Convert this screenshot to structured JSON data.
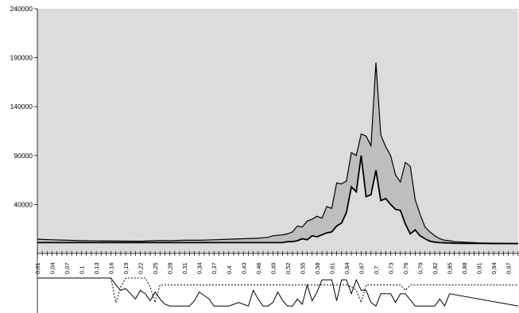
{
  "chart_data": {
    "type": "area",
    "title": "",
    "xlabel": "",
    "ylabel": "",
    "ylim": [
      -10000,
      240000
    ],
    "xlim": [
      0.01,
      0.99
    ],
    "grid": false,
    "legend": "none",
    "colors": {
      "plot_bg": "#dcdcdc",
      "band_fill": "#bebebe",
      "line": "#000000"
    },
    "yticks": [
      "40000",
      "90000",
      "140000",
      "190000",
      "240000"
    ],
    "yticks_values": [
      40000,
      90000,
      140000,
      190000,
      240000
    ],
    "xticks": [
      "0,01",
      "0,04",
      "0,07",
      "0,1",
      "0,13",
      "0,16",
      "0,19",
      "0,22",
      "0,25",
      "0,28",
      "0,31",
      "0,34",
      "0,37",
      "0,4",
      "0,43",
      "0,46",
      "0,49",
      "0,52",
      "0,55",
      "0,58",
      "0,61",
      "0,64",
      "0,67",
      "0,7",
      "0,73",
      "0,76",
      "0,79",
      "0,82",
      "0,85",
      "0,88",
      "0,91",
      "0,94",
      "0,97"
    ],
    "xticks_values": [
      0.01,
      0.04,
      0.07,
      0.1,
      0.13,
      0.16,
      0.19,
      0.22,
      0.25,
      0.28,
      0.31,
      0.34,
      0.37,
      0.4,
      0.43,
      0.46,
      0.49,
      0.52,
      0.55,
      0.58,
      0.61,
      0.64,
      0.67,
      0.7,
      0.73,
      0.76,
      0.79,
      0.82,
      0.85,
      0.88,
      0.91,
      0.94,
      0.97
    ],
    "x": [
      0.01,
      0.04,
      0.07,
      0.1,
      0.13,
      0.16,
      0.19,
      0.22,
      0.25,
      0.26,
      0.28,
      0.31,
      0.34,
      0.37,
      0.4,
      0.43,
      0.46,
      0.48,
      0.49,
      0.51,
      0.52,
      0.53,
      0.54,
      0.55,
      0.56,
      0.57,
      0.58,
      0.59,
      0.6,
      0.61,
      0.62,
      0.63,
      0.64,
      0.65,
      0.66,
      0.67,
      0.68,
      0.69,
      0.7,
      0.71,
      0.72,
      0.73,
      0.74,
      0.75,
      0.76,
      0.77,
      0.78,
      0.79,
      0.8,
      0.81,
      0.82,
      0.83,
      0.84,
      0.85,
      0.86,
      0.88,
      0.91,
      0.94,
      0.97,
      0.99
    ],
    "series": [
      {
        "values": [
          4500,
          4000,
          3500,
          3000,
          2800,
          2700,
          2600,
          2500,
          3000,
          3200,
          3000,
          3500,
          3500,
          4000,
          4500,
          5000,
          5500,
          6500,
          8000,
          9000,
          10000,
          12000,
          18000,
          17000,
          23000,
          25000,
          28000,
          26000,
          38000,
          36000,
          62000,
          61000,
          64000,
          93000,
          90000,
          112000,
          110000,
          100000,
          185000,
          111000,
          99000,
          90000,
          70000,
          63000,
          83000,
          79000,
          45000,
          30000,
          17000,
          12000,
          8000,
          5000,
          3500,
          3000,
          2000,
          1500,
          800,
          500,
          300,
          200
        ]
      },
      {
        "values": [
          1000,
          1000,
          1000,
          1000,
          1000,
          1000,
          1000,
          1000,
          1000,
          1000,
          1000,
          1000,
          1000,
          1000,
          1000,
          1000,
          1000,
          1000,
          1000,
          1000,
          2000,
          2000,
          3000,
          5000,
          4000,
          8000,
          7000,
          9000,
          11000,
          12000,
          18000,
          21000,
          32000,
          58000,
          53000,
          90000,
          48000,
          50000,
          75000,
          44000,
          46000,
          40000,
          35000,
          34000,
          20000,
          10000,
          14000,
          8000,
          5000,
          2500,
          1500,
          1000,
          800,
          600,
          400,
          300,
          200,
          100,
          100,
          100
        ]
      }
    ],
    "lower_panel": {
      "type": "line",
      "series": [
        {
          "line_style": "solid",
          "x": [
            0.01,
            0.16,
            0.17,
            0.18,
            0.19,
            0.2,
            0.21,
            0.22,
            0.23,
            0.24,
            0.25,
            0.26,
            0.27,
            0.28,
            0.3,
            0.32,
            0.33,
            0.34,
            0.36,
            0.37,
            0.38,
            0.4,
            0.42,
            0.44,
            0.45,
            0.46,
            0.47,
            0.48,
            0.49,
            0.5,
            0.51,
            0.52,
            0.53,
            0.54,
            0.55,
            0.56,
            0.57,
            0.58,
            0.59,
            0.6,
            0.61,
            0.62,
            0.63,
            0.64,
            0.65,
            0.66,
            0.67,
            0.68,
            0.69,
            0.7,
            0.71,
            0.72,
            0.73,
            0.74,
            0.75,
            0.76,
            0.78,
            0.8,
            0.82,
            0.83,
            0.84,
            0.85,
            0.99
          ],
          "values": [
            1.0,
            1.0,
            0.6,
            0.3,
            0.4,
            0.1,
            -0.2,
            0.3,
            0.1,
            -0.3,
            0.2,
            -0.2,
            -0.5,
            -0.6,
            -0.6,
            -0.6,
            -0.3,
            0.2,
            -0.2,
            -0.6,
            -0.6,
            -0.6,
            -0.4,
            -0.6,
            0.3,
            -0.2,
            -0.6,
            -0.6,
            -0.4,
            0.2,
            -0.3,
            -0.6,
            -0.6,
            -0.2,
            -0.5,
            0.6,
            -0.3,
            0.2,
            0.9,
            0.9,
            0.9,
            -0.3,
            0.9,
            0.9,
            0.1,
            0.9,
            0.3,
            0.3,
            -0.4,
            -0.6,
            0.1,
            0.1,
            0.1,
            -0.4,
            0.1,
            0.1,
            -0.6,
            -0.6,
            -0.6,
            -0.2,
            -0.6,
            0.1,
            -0.6
          ]
        },
        {
          "line_style": "dotted",
          "x": [
            0.01,
            0.16,
            0.17,
            0.18,
            0.19,
            0.2,
            0.21,
            0.22,
            0.23,
            0.24,
            0.25,
            0.26,
            0.4,
            0.64,
            0.65,
            0.66,
            0.67,
            0.68,
            0.69,
            0.75,
            0.76,
            0.77,
            0.99
          ],
          "values": [
            1.0,
            1.0,
            -0.4,
            0.5,
            1.0,
            1.0,
            1.0,
            1.0,
            1.0,
            0.5,
            -0.4,
            0.6,
            0.6,
            0.6,
            0.5,
            0.3,
            -0.4,
            0.6,
            0.6,
            0.6,
            0.3,
            0.6,
            0.6
          ]
        }
      ]
    }
  }
}
